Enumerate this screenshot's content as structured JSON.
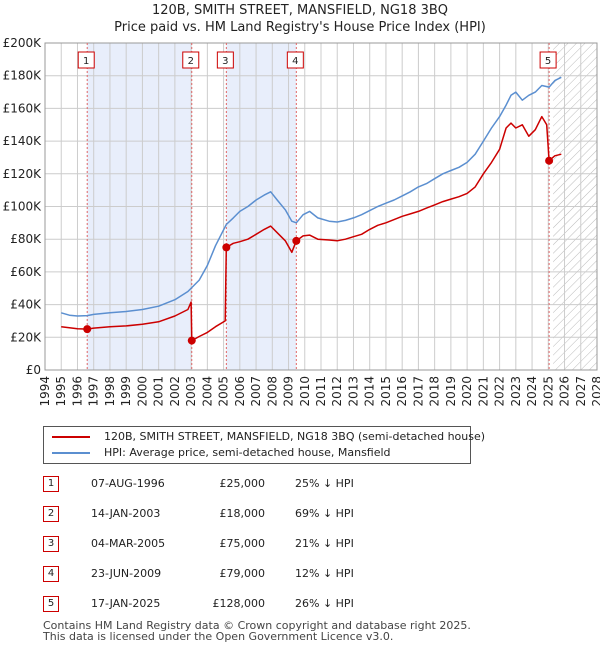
{
  "title_line1": "120B, SMITH STREET, MANSFIELD, NG18 3BQ",
  "title_line2": "Price paid vs. HM Land Registry's House Price Index (HPI)",
  "colors": {
    "price": "#cc0000",
    "hpi": "#5b8fd0",
    "shade": "#e8eefb",
    "grid": "#cccccc",
    "marker_line": "#e06666"
  },
  "chart_data": {
    "type": "line",
    "title": "Price paid vs. HM Land Registry's House Price Index (HPI)",
    "xlabel": "",
    "ylabel": "",
    "xlim": [
      1994,
      2028
    ],
    "ylim": [
      0,
      200000
    ],
    "y_ticks": [
      0,
      20000,
      40000,
      60000,
      80000,
      100000,
      120000,
      140000,
      160000,
      180000,
      200000
    ],
    "y_tick_labels": [
      "£0",
      "£20K",
      "£40K",
      "£60K",
      "£80K",
      "£100K",
      "£120K",
      "£140K",
      "£160K",
      "£180K",
      "£200K"
    ],
    "x_ticks": [
      1994,
      1995,
      1996,
      1997,
      1998,
      1999,
      2000,
      2001,
      2002,
      2003,
      2004,
      2005,
      2006,
      2007,
      2008,
      2009,
      2010,
      2011,
      2012,
      2013,
      2014,
      2015,
      2016,
      2017,
      2018,
      2019,
      2020,
      2021,
      2022,
      2023,
      2024,
      2025,
      2026,
      2027,
      2028
    ],
    "grid": true,
    "shaded_periods": [
      [
        1996.6,
        2003.04
      ],
      [
        2005.17,
        2009.48
      ]
    ],
    "hatched_after": 2025.05,
    "series": [
      {
        "name": "120B, SMITH STREET, MANSFIELD, NG18 3BQ (semi-detached house)",
        "points": [
          [
            1995.0,
            26500
          ],
          [
            1995.5,
            25800
          ],
          [
            1996.0,
            25200
          ],
          [
            1996.6,
            25000
          ],
          [
            1997.0,
            25600
          ],
          [
            1998.0,
            26400
          ],
          [
            1999.0,
            27000
          ],
          [
            2000.0,
            28000
          ],
          [
            2001.0,
            29500
          ],
          [
            2002.0,
            33000
          ],
          [
            2002.8,
            37000
          ],
          [
            2003.0,
            41500
          ],
          [
            2003.04,
            18000
          ],
          [
            2003.5,
            20500
          ],
          [
            2004.0,
            23000
          ],
          [
            2004.5,
            26500
          ],
          [
            2005.1,
            30000
          ],
          [
            2005.17,
            75000
          ],
          [
            2005.6,
            77500
          ],
          [
            2006.0,
            78500
          ],
          [
            2006.5,
            80000
          ],
          [
            2007.0,
            83000
          ],
          [
            2007.5,
            86000
          ],
          [
            2007.9,
            88000
          ],
          [
            2008.3,
            84000
          ],
          [
            2008.8,
            79000
          ],
          [
            2009.2,
            72000
          ],
          [
            2009.48,
            79000
          ],
          [
            2009.9,
            82000
          ],
          [
            2010.3,
            82500
          ],
          [
            2010.8,
            80000
          ],
          [
            2011.5,
            79500
          ],
          [
            2012.0,
            79000
          ],
          [
            2012.5,
            80000
          ],
          [
            2013.0,
            81500
          ],
          [
            2013.5,
            83000
          ],
          [
            2014.0,
            86000
          ],
          [
            2014.5,
            88500
          ],
          [
            2015.0,
            90000
          ],
          [
            2015.5,
            92000
          ],
          [
            2016.0,
            94000
          ],
          [
            2016.5,
            95500
          ],
          [
            2017.0,
            97000
          ],
          [
            2017.5,
            99000
          ],
          [
            2018.0,
            101000
          ],
          [
            2018.5,
            103000
          ],
          [
            2019.0,
            104500
          ],
          [
            2019.5,
            106000
          ],
          [
            2020.0,
            108000
          ],
          [
            2020.5,
            112000
          ],
          [
            2021.0,
            120000
          ],
          [
            2021.5,
            127000
          ],
          [
            2022.0,
            135000
          ],
          [
            2022.4,
            148000
          ],
          [
            2022.7,
            151000
          ],
          [
            2023.0,
            148000
          ],
          [
            2023.4,
            150000
          ],
          [
            2023.8,
            143000
          ],
          [
            2024.2,
            147000
          ],
          [
            2024.6,
            155000
          ],
          [
            2024.9,
            150000
          ],
          [
            2025.05,
            128000
          ],
          [
            2025.4,
            131000
          ],
          [
            2025.8,
            132000
          ]
        ]
      },
      {
        "name": "HPI: Average price, semi-detached house, Mansfield",
        "points": [
          [
            1995.0,
            35000
          ],
          [
            1995.5,
            33500
          ],
          [
            1996.0,
            33000
          ],
          [
            1996.6,
            33300
          ],
          [
            1997.0,
            34000
          ],
          [
            1998.0,
            35000
          ],
          [
            1999.0,
            35800
          ],
          [
            2000.0,
            37000
          ],
          [
            2001.0,
            39000
          ],
          [
            2002.0,
            43000
          ],
          [
            2002.8,
            48000
          ],
          [
            2003.5,
            55000
          ],
          [
            2004.0,
            64000
          ],
          [
            2004.5,
            76000
          ],
          [
            2005.17,
            89000
          ],
          [
            2005.6,
            93000
          ],
          [
            2006.0,
            97000
          ],
          [
            2006.5,
            100000
          ],
          [
            2007.0,
            104000
          ],
          [
            2007.5,
            107000
          ],
          [
            2007.9,
            109000
          ],
          [
            2008.3,
            104000
          ],
          [
            2008.8,
            98000
          ],
          [
            2009.2,
            91000
          ],
          [
            2009.48,
            90000
          ],
          [
            2009.9,
            95000
          ],
          [
            2010.3,
            97000
          ],
          [
            2010.8,
            93000
          ],
          [
            2011.5,
            91000
          ],
          [
            2012.0,
            90500
          ],
          [
            2012.5,
            91500
          ],
          [
            2013.0,
            93000
          ],
          [
            2013.5,
            95000
          ],
          [
            2014.0,
            97500
          ],
          [
            2014.5,
            100000
          ],
          [
            2015.0,
            102000
          ],
          [
            2015.5,
            104000
          ],
          [
            2016.0,
            106500
          ],
          [
            2016.5,
            109000
          ],
          [
            2017.0,
            112000
          ],
          [
            2017.5,
            114000
          ],
          [
            2018.0,
            117000
          ],
          [
            2018.5,
            120000
          ],
          [
            2019.0,
            122000
          ],
          [
            2019.5,
            124000
          ],
          [
            2020.0,
            127000
          ],
          [
            2020.5,
            132000
          ],
          [
            2021.0,
            140000
          ],
          [
            2021.5,
            148000
          ],
          [
            2022.0,
            155000
          ],
          [
            2022.4,
            162000
          ],
          [
            2022.7,
            168000
          ],
          [
            2023.0,
            170000
          ],
          [
            2023.4,
            165000
          ],
          [
            2023.8,
            168000
          ],
          [
            2024.2,
            170000
          ],
          [
            2024.6,
            174000
          ],
          [
            2025.05,
            173000
          ],
          [
            2025.4,
            177000
          ],
          [
            2025.8,
            179000
          ]
        ]
      }
    ],
    "sale_markers": [
      {
        "label": "1",
        "x": 1996.6,
        "y": 25000
      },
      {
        "label": "2",
        "x": 2003.04,
        "y": 18000
      },
      {
        "label": "3",
        "x": 2005.17,
        "y": 75000
      },
      {
        "label": "4",
        "x": 2009.48,
        "y": 79000
      },
      {
        "label": "5",
        "x": 2025.05,
        "y": 128000
      }
    ]
  },
  "legend": [
    {
      "label": "120B, SMITH STREET, MANSFIELD, NG18 3BQ (semi-detached house)",
      "color": "#cc0000"
    },
    {
      "label": "HPI: Average price, semi-detached house, Mansfield",
      "color": "#5b8fd0"
    }
  ],
  "transactions": [
    {
      "num": "1",
      "date": "07-AUG-1996",
      "price": "£25,000",
      "hpi": "25% ↓ HPI"
    },
    {
      "num": "2",
      "date": "14-JAN-2003",
      "price": "£18,000",
      "hpi": "69% ↓ HPI"
    },
    {
      "num": "3",
      "date": "04-MAR-2005",
      "price": "£75,000",
      "hpi": "21% ↓ HPI"
    },
    {
      "num": "4",
      "date": "23-JUN-2009",
      "price": "£79,000",
      "hpi": "12% ↓ HPI"
    },
    {
      "num": "5",
      "date": "17-JAN-2025",
      "price": "£128,000",
      "hpi": "26% ↓ HPI"
    }
  ],
  "footer_line1": "Contains HM Land Registry data © Crown copyright and database right 2025.",
  "footer_line2": "This data is licensed under the Open Government Licence v3.0."
}
